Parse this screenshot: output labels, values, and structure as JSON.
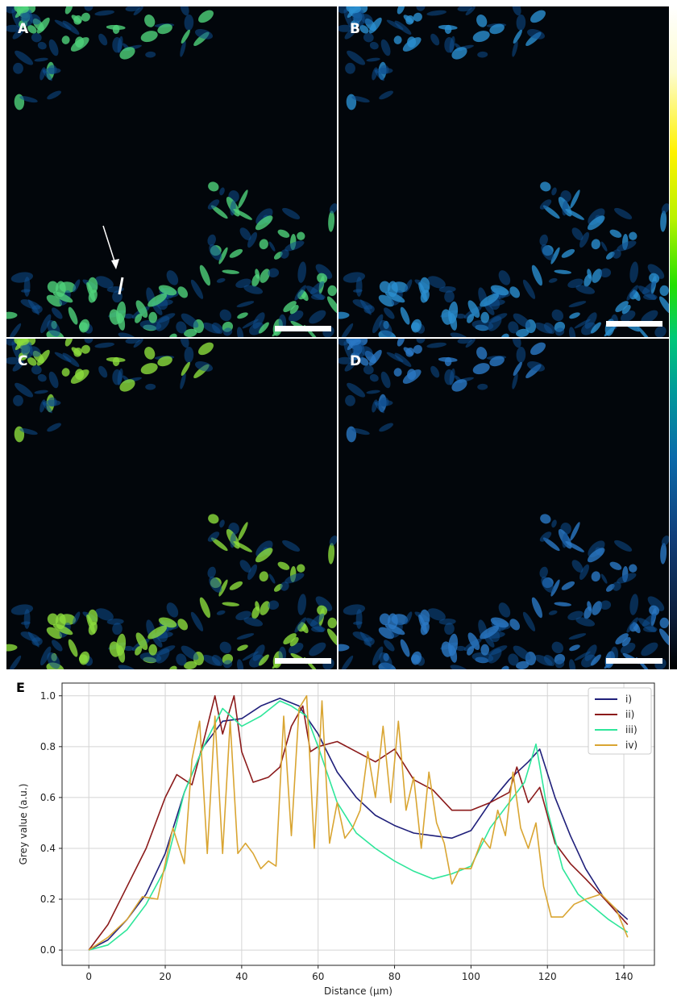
{
  "panels": [
    {
      "letter": "A",
      "tint": "#4fd27a",
      "seed": 3,
      "arrow": true
    },
    {
      "letter": "B",
      "tint": "#2b8fd0",
      "seed": 3,
      "arrow": false
    },
    {
      "letter": "C",
      "tint": "#8bdc3c",
      "seed": 3,
      "arrow": false
    },
    {
      "letter": "D",
      "tint": "#2a78c4",
      "seed": 3,
      "arrow": false
    }
  ],
  "chart_data": {
    "type": "line",
    "panel_label": "E",
    "xlabel": "Distance (µm)",
    "ylabel": "Grey value (a.u.)",
    "xlim": [
      -7,
      148
    ],
    "ylim": [
      -0.06,
      1.05
    ],
    "xticks": [
      0,
      20,
      40,
      60,
      80,
      100,
      120,
      140
    ],
    "yticks": [
      0.0,
      0.2,
      0.4,
      0.6,
      0.8,
      1.0
    ],
    "grid": true,
    "legend_position": "top-right",
    "series": [
      {
        "name": "i)",
        "color": "#1f1f7a",
        "x": [
          0,
          5,
          10,
          15,
          20,
          25,
          30,
          35,
          40,
          45,
          50,
          55,
          60,
          65,
          70,
          75,
          80,
          85,
          90,
          95,
          100,
          105,
          110,
          115,
          118,
          122,
          126,
          130,
          135,
          141
        ],
        "y": [
          0.0,
          0.04,
          0.12,
          0.22,
          0.38,
          0.62,
          0.8,
          0.9,
          0.91,
          0.96,
          0.99,
          0.96,
          0.85,
          0.7,
          0.6,
          0.53,
          0.49,
          0.46,
          0.45,
          0.44,
          0.47,
          0.58,
          0.67,
          0.74,
          0.79,
          0.6,
          0.45,
          0.32,
          0.2,
          0.12
        ]
      },
      {
        "name": "ii)",
        "color": "#8b1a1a",
        "x": [
          0,
          5,
          10,
          15,
          20,
          23,
          27,
          30,
          33,
          35,
          38,
          40,
          43,
          47,
          50,
          53,
          56,
          58,
          60,
          65,
          70,
          75,
          80,
          85,
          90,
          95,
          100,
          105,
          110,
          112,
          115,
          118,
          122,
          126,
          130,
          135,
          141
        ],
        "y": [
          0.0,
          0.1,
          0.25,
          0.4,
          0.6,
          0.69,
          0.65,
          0.82,
          1.0,
          0.85,
          1.0,
          0.78,
          0.66,
          0.68,
          0.72,
          0.88,
          0.96,
          0.78,
          0.8,
          0.82,
          0.78,
          0.74,
          0.79,
          0.67,
          0.63,
          0.55,
          0.55,
          0.58,
          0.62,
          0.72,
          0.58,
          0.64,
          0.42,
          0.34,
          0.28,
          0.2,
          0.1
        ]
      },
      {
        "name": "iii)",
        "color": "#2ee69a",
        "x": [
          0,
          5,
          10,
          15,
          20,
          25,
          30,
          35,
          40,
          45,
          50,
          53,
          57,
          60,
          65,
          70,
          75,
          80,
          85,
          90,
          95,
          100,
          105,
          110,
          114,
          117,
          120,
          124,
          128,
          132,
          136,
          141
        ],
        "y": [
          0.0,
          0.02,
          0.08,
          0.18,
          0.32,
          0.62,
          0.8,
          0.95,
          0.88,
          0.92,
          0.98,
          0.96,
          0.92,
          0.8,
          0.58,
          0.46,
          0.4,
          0.35,
          0.31,
          0.28,
          0.3,
          0.33,
          0.48,
          0.58,
          0.66,
          0.81,
          0.55,
          0.32,
          0.22,
          0.17,
          0.12,
          0.07
        ]
      },
      {
        "name": "iv)",
        "color": "#d9a532",
        "x": [
          0,
          5,
          10,
          14,
          18,
          22,
          25,
          27,
          29,
          31,
          33,
          35,
          37,
          39,
          41,
          43,
          45,
          47,
          49,
          51,
          53,
          55,
          57,
          59,
          61,
          63,
          65,
          67,
          69,
          71,
          73,
          75,
          77,
          79,
          81,
          83,
          85,
          87,
          89,
          91,
          93,
          95,
          97,
          100,
          103,
          105,
          107,
          109,
          111,
          113,
          115,
          117,
          119,
          121,
          124,
          127,
          130,
          134,
          138,
          141
        ],
        "y": [
          0.0,
          0.05,
          0.12,
          0.21,
          0.2,
          0.48,
          0.34,
          0.75,
          0.9,
          0.38,
          0.92,
          0.38,
          0.9,
          0.38,
          0.42,
          0.38,
          0.32,
          0.35,
          0.33,
          0.92,
          0.45,
          0.95,
          1.0,
          0.4,
          0.98,
          0.42,
          0.58,
          0.44,
          0.48,
          0.55,
          0.78,
          0.6,
          0.88,
          0.58,
          0.9,
          0.55,
          0.68,
          0.4,
          0.7,
          0.5,
          0.42,
          0.26,
          0.32,
          0.32,
          0.44,
          0.4,
          0.55,
          0.45,
          0.7,
          0.48,
          0.4,
          0.5,
          0.25,
          0.13,
          0.13,
          0.18,
          0.2,
          0.22,
          0.16,
          0.05
        ]
      }
    ]
  }
}
